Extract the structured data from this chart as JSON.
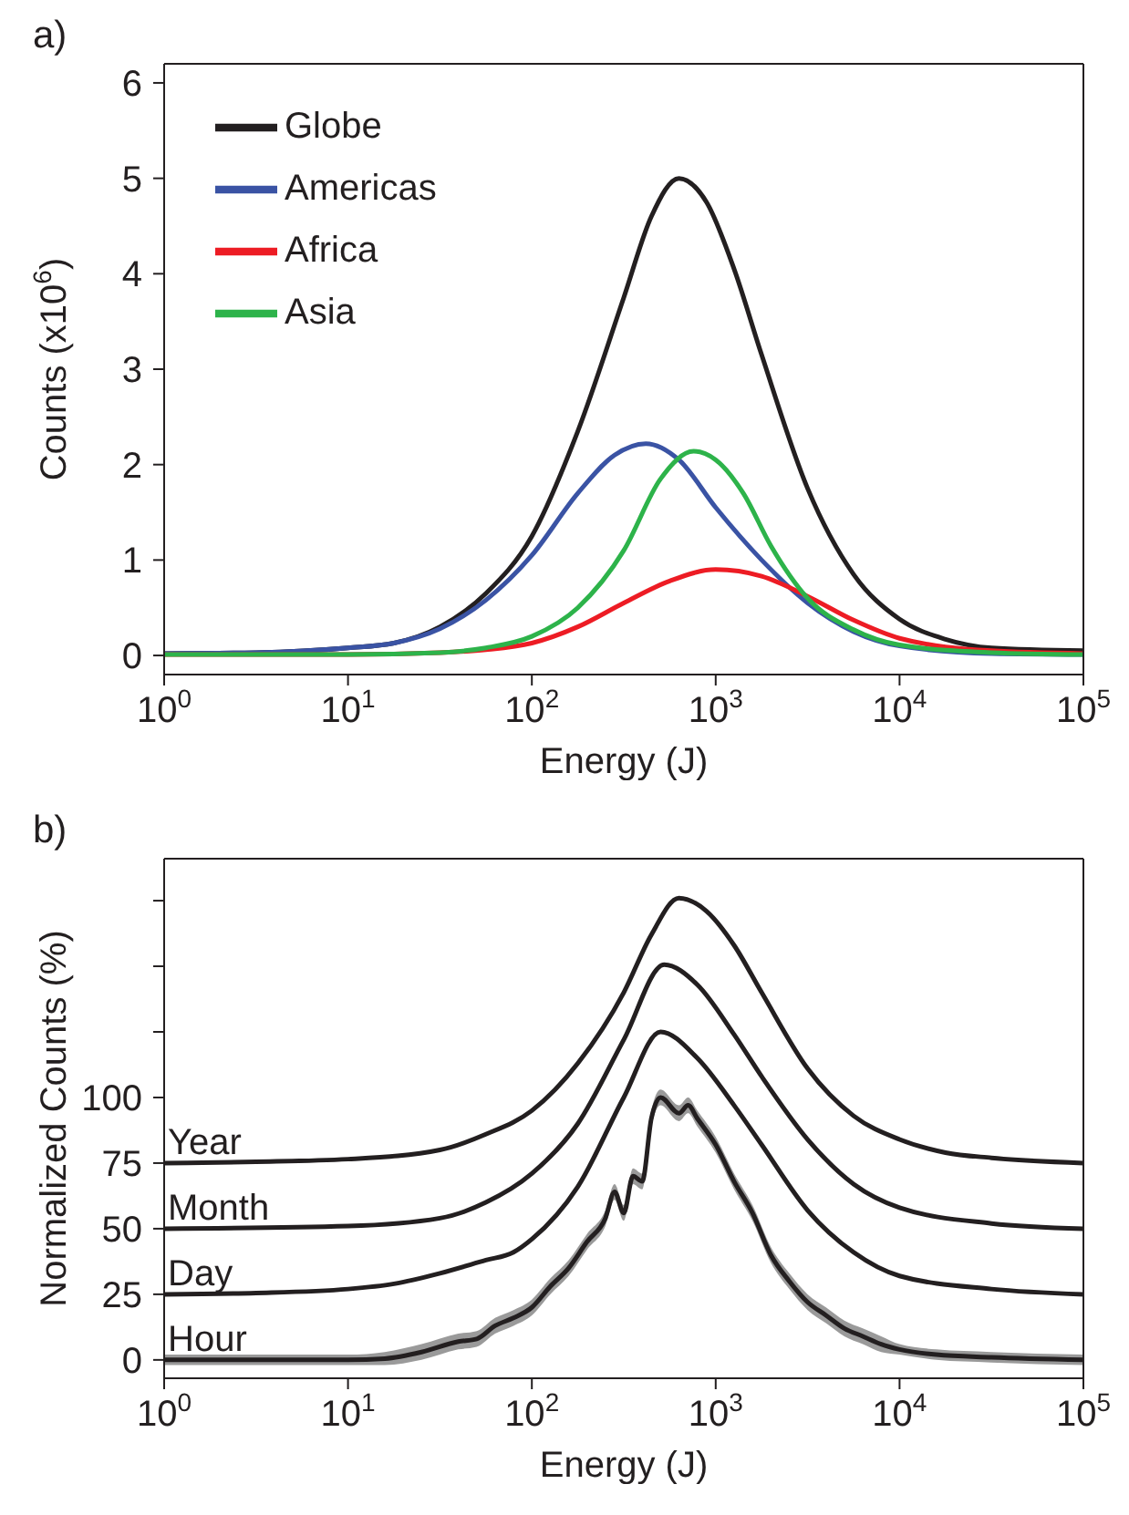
{
  "chart_data": [
    {
      "type": "line",
      "title": "a)",
      "xlabel": "Energy (J)",
      "ylabel": "Counts (x10$^{6}$)",
      "log": "x",
      "legend": "top left",
      "marker": "none",
      "line_style": "solid",
      "grid": false,
      "xlim": [
        1,
        100000
      ],
      "xticks": [
        {
          "value": 1,
          "label": "10$^{0}$"
        },
        {
          "value": 10,
          "label": "10$^{1}$"
        },
        {
          "value": 100,
          "label": "10$^{2}$"
        },
        {
          "value": 1000,
          "label": "10$^{3}$"
        },
        {
          "value": 10000,
          "label": "10$^{4}$"
        },
        {
          "value": 100000,
          "label": "10$^{5}$"
        }
      ],
      "ylim": [
        -0.2,
        6.2
      ],
      "yticks": [
        0,
        1,
        2,
        3,
        4,
        5,
        6
      ],
      "series": [
        {
          "name": "Globe",
          "color": "#231f20",
          "x": [
            1,
            3.162,
            10,
            17.78,
            31.62,
            56.23,
            100,
            177.8,
            316.2,
            446.7,
            631,
            891.3,
            1259,
            1778,
            3162,
            5623,
            10000,
            17783,
            31623,
            100000
          ],
          "values": [
            0.02,
            0.03,
            0.08,
            0.13,
            0.3,
            0.65,
            1.25,
            2.35,
            3.75,
            4.6,
            5.0,
            4.75,
            4.05,
            3.15,
            1.75,
            0.85,
            0.38,
            0.17,
            0.08,
            0.05
          ]
        },
        {
          "name": "Americas",
          "color": "#3a53a4",
          "x": [
            1,
            3.162,
            10,
            17.78,
            31.62,
            56.23,
            100,
            177.8,
            281.8,
            416.9,
            631,
            1000,
            1778,
            3162,
            5623,
            10000,
            31623,
            100000
          ],
          "values": [
            0.02,
            0.03,
            0.08,
            0.13,
            0.28,
            0.58,
            1.05,
            1.7,
            2.1,
            2.22,
            2.05,
            1.55,
            1.0,
            0.55,
            0.25,
            0.1,
            0.02,
            0.01
          ]
        },
        {
          "name": "Africa",
          "color": "#ed1c24",
          "x": [
            1,
            10,
            31.62,
            56.23,
            100,
            177.8,
            316.2,
            562.3,
            1000,
            1778,
            3162,
            5623,
            10000,
            31623,
            100000
          ],
          "values": [
            0.01,
            0.01,
            0.03,
            0.06,
            0.13,
            0.3,
            0.55,
            0.78,
            0.9,
            0.83,
            0.62,
            0.37,
            0.18,
            0.05,
            0.02
          ]
        },
        {
          "name": "Asia",
          "color": "#2db34a",
          "x": [
            1,
            10,
            31.62,
            56.23,
            100,
            177.8,
            316.2,
            501.2,
            758.6,
            1000,
            1413,
            1995,
            3162,
            5623,
            10000,
            31623,
            100000
          ],
          "values": [
            0.01,
            0.01,
            0.03,
            0.08,
            0.2,
            0.5,
            1.1,
            1.85,
            2.14,
            2.05,
            1.7,
            1.15,
            0.6,
            0.27,
            0.11,
            0.03,
            0.01
          ]
        }
      ]
    },
    {
      "type": "line",
      "title": "b)",
      "xlabel": "Energy (J)",
      "ylabel": "Normalized Counts (%)",
      "log": "x",
      "legend": false,
      "marker": "none",
      "line_style": "solid",
      "grid": false,
      "xlim": [
        1,
        100000
      ],
      "xticks": [
        {
          "value": 1,
          "label": "10$^{0}$"
        },
        {
          "value": 10,
          "label": "10$^{1}$"
        },
        {
          "value": 100,
          "label": "10$^{2}$"
        },
        {
          "value": 1000,
          "label": "10$^{3}$"
        },
        {
          "value": 10000,
          "label": "10$^{4}$"
        },
        {
          "value": 100000,
          "label": "10$^{5}$"
        }
      ],
      "ylim": [
        -7,
        191
      ],
      "yticks": [
        0,
        25,
        50,
        75,
        100,
        {
          "value": 125,
          "label": null
        },
        {
          "value": 150,
          "label": null
        },
        {
          "value": 175,
          "label": null
        }
      ],
      "series": [
        {
          "name": "Year",
          "color": "#231f20",
          "x": [
            1,
            3.162,
            10,
            31.62,
            56.23,
            100,
            177.8,
            316.2,
            446.7,
            631,
            891.3,
            1259,
            1778,
            3162,
            5623,
            10000,
            17783,
            31623,
            100000
          ],
          "values": [
            75,
            75.5,
            76.5,
            80,
            86,
            95,
            113,
            140,
            162,
            176,
            171,
            158,
            140,
            111,
            93,
            84,
            79,
            77,
            75
          ]
        },
        {
          "name": "Month",
          "color": "#231f20",
          "x": [
            1,
            10,
            31.62,
            56.23,
            100,
            177.8,
            316.2,
            524.8,
            794.3,
            1259,
            1778,
            3162,
            5623,
            10000,
            31623,
            100000
          ],
          "values": [
            50,
            51,
            54,
            60,
            71,
            90,
            122,
            150.6,
            143,
            124,
            108,
            84,
            67,
            58,
            52,
            50
          ]
        },
        {
          "name": "Day",
          "color": "#231f20",
          "x": [
            1,
            3.162,
            10,
            17.78,
            31.62,
            56.23,
            79.43,
            100,
            177.8,
            316.2,
            501.2,
            794.3,
            1259,
            1778,
            3162,
            5623,
            10000,
            31623,
            100000
          ],
          "values": [
            25,
            25.5,
            27,
            29,
            33,
            38,
            41,
            46,
            66,
            100,
            125,
            115,
            97,
            82,
            57,
            41,
            32,
            27,
            25
          ]
        },
        {
          "name": "Hour",
          "color": "#231f20",
          "x": [
            1,
            10,
            15.85,
            25.12,
            39.81,
            50.12,
            63.1,
            79.43,
            100,
            125.9,
            158.5,
            199.5,
            251.2,
            281.8,
            316.2,
            354.8,
            398.1,
            446.7,
            501.2,
            631,
            707.9,
            794.3,
            1000,
            1259,
            1585,
            1995,
            2512,
            3162,
            3981,
            5012,
            6310,
            7943,
            10000,
            15849,
            31623,
            100000
          ],
          "values": [
            0,
            0,
            0.5,
            3,
            7,
            8,
            13,
            16,
            20,
            28,
            35,
            45,
            54,
            64,
            56,
            70,
            68,
            92,
            100,
            94,
            97,
            92,
            82,
            68,
            56,
            40,
            30,
            22,
            17,
            12,
            9,
            6,
            4,
            2,
            1,
            0
          ],
          "lower": [
            -2,
            -2,
            -2,
            0,
            4,
            5,
            10,
            13,
            17,
            25,
            32,
            42,
            51,
            61,
            53,
            67,
            65,
            89,
            97,
            91,
            94,
            89,
            79,
            65,
            53,
            37,
            27,
            19,
            14,
            9,
            6,
            3,
            2,
            0,
            -1,
            -2
          ],
          "upper": [
            2,
            2,
            3,
            6,
            10,
            11,
            16,
            19,
            23,
            31,
            38,
            48,
            57,
            67,
            59,
            73,
            71,
            95,
            103,
            97,
            100,
            95,
            85,
            71,
            59,
            43,
            33,
            25,
            20,
            15,
            12,
            9,
            6,
            4,
            3,
            2
          ]
        }
      ]
    }
  ]
}
